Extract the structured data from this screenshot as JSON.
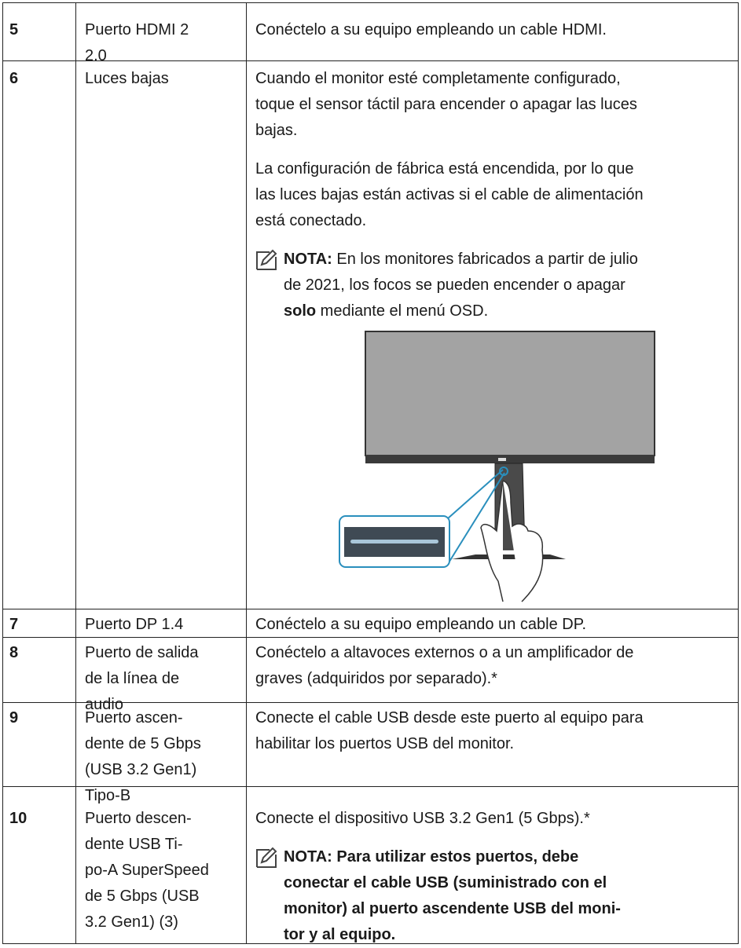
{
  "table": {
    "rows": [
      {
        "number": "5",
        "label_lines": [
          "Puerto HDMI 2",
          "2.0"
        ],
        "description": [
          {
            "lines": [
              "Conéctelo a su equipo empleando un cable HDMI."
            ]
          }
        ]
      },
      {
        "number": "6",
        "label_lines": [
          "Luces bajas"
        ],
        "description": [
          {
            "lines": [
              "Cuando el monitor esté completamente configurado,",
              "toque el sensor táctil para encender o apagar las luces",
              "bajas."
            ]
          },
          {
            "lines": [
              "La configuración de fábrica está encendida, por lo que",
              "las luces bajas están activas si el cable de alimentación",
              "está conectado."
            ]
          },
          {
            "note": true,
            "lines": [
              [
                {
                  "text": "NOTA:",
                  "bold": true
                },
                {
                  "text": " En los monitores fabricados a partir de julio",
                  "bold": false
                }
              ],
              [
                {
                  "text": "de 2021, los focos se pueden encender o apagar",
                  "bold": false
                }
              ],
              [
                {
                  "text": "solo",
                  "bold": true
                },
                {
                  "text": " mediante el menú OSD.",
                  "bold": false
                }
              ]
            ]
          }
        ]
      },
      {
        "number": "7",
        "label_lines": [
          "Puerto DP 1.4"
        ],
        "description": [
          {
            "lines": [
              "Conéctelo a su equipo empleando un cable DP."
            ]
          }
        ]
      },
      {
        "number": "8",
        "label_lines": [
          "Puerto de salida",
          "de la línea de",
          "audio"
        ],
        "description": [
          {
            "lines": [
              "Conéctelo a altavoces externos o a un amplificador de",
              "graves (adquiridos por separado).*"
            ]
          }
        ]
      },
      {
        "number": "9",
        "label_lines": [
          "Puerto ascen-",
          "dente de 5 Gbps",
          "(USB 3.2 Gen1)",
          "Tipo-B"
        ],
        "description": [
          {
            "lines": [
              "Conecte el cable USB desde este puerto al equipo para",
              "habilitar los puertos USB del monitor."
            ]
          }
        ]
      },
      {
        "number": "10",
        "label_lines": [
          "Puerto descen-",
          "dente USB Ti-",
          "po-A SuperSpeed",
          "de 5 Gbps (USB",
          "3.2 Gen1) (3)"
        ],
        "description": [
          {
            "lines": [
              "Conecte el dispositivo USB 3.2 Gen1 (5 Gbps).*"
            ]
          },
          {
            "note": true,
            "lines": [
              [
                {
                  "text": "NOTA: Para utilizar estos puertos, debe",
                  "bold": true
                }
              ],
              [
                {
                  "text": "conectar el cable USB (suministrado con el",
                  "bold": true
                }
              ],
              [
                {
                  "text": "monitor) al puerto ascendente USB del moni-",
                  "bold": true
                }
              ],
              [
                {
                  "text": "tor y al equipo.",
                  "bold": true
                }
              ]
            ]
          }
        ]
      }
    ]
  }
}
